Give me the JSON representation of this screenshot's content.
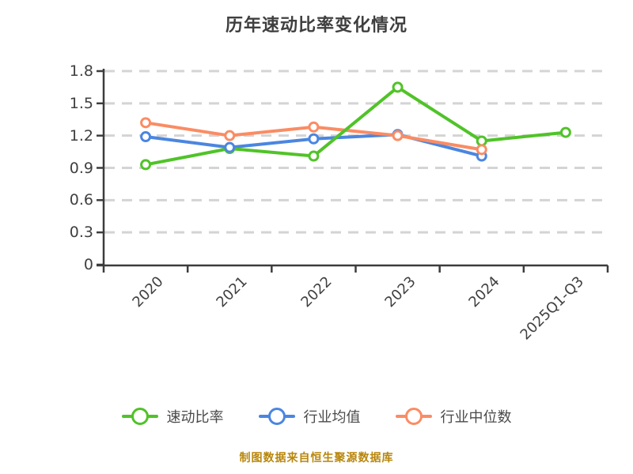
{
  "title": "历年速动比率变化情况",
  "footer": "制图数据来自恒生聚源数据库",
  "colors": {
    "title_text": "#3f3f3f",
    "axis": "#3c3c3c",
    "tick_text": "#404040",
    "grid": "#d4d4d4",
    "legend_text": "#4a4a4a",
    "footer_text": "#b8860b",
    "background": "#ffffff"
  },
  "chart_data": {
    "type": "line",
    "title": "历年速动比率变化情况",
    "categories": [
      "2020",
      "2021",
      "2022",
      "2023",
      "2024",
      "2025Q1-Q3"
    ],
    "series": [
      {
        "id": "quick-ratio",
        "name": "速动比率",
        "color": "#50c328",
        "values": [
          0.93,
          1.08,
          1.01,
          1.65,
          1.15,
          1.23
        ]
      },
      {
        "id": "industry-average",
        "name": "行业均值",
        "color": "#4b86e0",
        "values": [
          1.19,
          1.09,
          1.17,
          1.21,
          1.01,
          null
        ]
      },
      {
        "id": "industry-median",
        "name": "行业中位数",
        "color": "#fa8c64",
        "values": [
          1.32,
          1.2,
          1.28,
          1.2,
          1.07,
          null
        ]
      }
    ],
    "xlabel": "",
    "ylabel": "",
    "ylim": [
      0,
      1.8
    ],
    "yticks": [
      0,
      0.3,
      0.6,
      0.9,
      1.2,
      1.5,
      1.8
    ],
    "grid": "horizontal-dashed",
    "legend_position": "bottom",
    "marker": "circle-white-fill",
    "x_tick_label_rotation_deg": -45
  }
}
